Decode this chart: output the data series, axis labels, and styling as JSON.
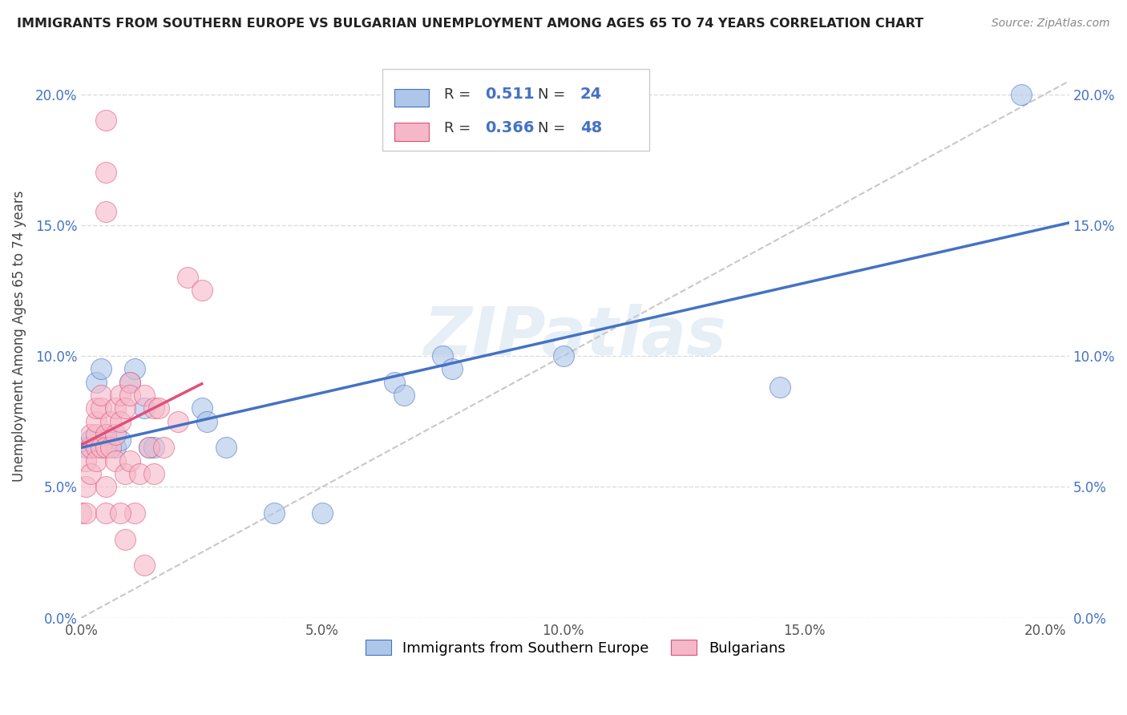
{
  "title": "IMMIGRANTS FROM SOUTHERN EUROPE VS BULGARIAN UNEMPLOYMENT AMONG AGES 65 TO 74 YEARS CORRELATION CHART",
  "source": "Source: ZipAtlas.com",
  "ylabel": "Unemployment Among Ages 65 to 74 years",
  "legend_label1": "Immigrants from Southern Europe",
  "legend_label2": "Bulgarians",
  "R1": "0.511",
  "N1": "24",
  "R2": "0.366",
  "N2": "48",
  "color_blue": "#aec6e8",
  "color_pink": "#f5b8c8",
  "line_blue": "#4472c4",
  "line_pink": "#e0507a",
  "line_dashed_color": "#c8c8c8",
  "watermark": "ZIPatlas",
  "blue_scatter_x": [
    0.001,
    0.002,
    0.003,
    0.004,
    0.005,
    0.007,
    0.008,
    0.01,
    0.011,
    0.013,
    0.014,
    0.015,
    0.025,
    0.026,
    0.03,
    0.04,
    0.05,
    0.065,
    0.067,
    0.075,
    0.077,
    0.1,
    0.145,
    0.195
  ],
  "blue_scatter_y": [
    0.065,
    0.068,
    0.09,
    0.095,
    0.07,
    0.065,
    0.068,
    0.09,
    0.095,
    0.08,
    0.065,
    0.065,
    0.08,
    0.075,
    0.065,
    0.04,
    0.04,
    0.09,
    0.085,
    0.1,
    0.095,
    0.1,
    0.088,
    0.2
  ],
  "pink_scatter_x": [
    0.0,
    0.001,
    0.001,
    0.001,
    0.002,
    0.002,
    0.002,
    0.003,
    0.003,
    0.003,
    0.003,
    0.003,
    0.004,
    0.004,
    0.004,
    0.005,
    0.005,
    0.005,
    0.005,
    0.005,
    0.006,
    0.006,
    0.007,
    0.007,
    0.007,
    0.008,
    0.008,
    0.009,
    0.009,
    0.01,
    0.01,
    0.01,
    0.011,
    0.012,
    0.013,
    0.013,
    0.014,
    0.015,
    0.015,
    0.016,
    0.017,
    0.02,
    0.022,
    0.005,
    0.005,
    0.008,
    0.009,
    0.025
  ],
  "pink_scatter_y": [
    0.04,
    0.04,
    0.05,
    0.06,
    0.055,
    0.065,
    0.07,
    0.07,
    0.075,
    0.08,
    0.065,
    0.06,
    0.08,
    0.085,
    0.065,
    0.07,
    0.065,
    0.05,
    0.17,
    0.19,
    0.075,
    0.065,
    0.08,
    0.07,
    0.06,
    0.085,
    0.075,
    0.08,
    0.055,
    0.09,
    0.085,
    0.06,
    0.04,
    0.055,
    0.085,
    0.02,
    0.065,
    0.08,
    0.055,
    0.08,
    0.065,
    0.075,
    0.13,
    0.155,
    0.04,
    0.04,
    0.03,
    0.125
  ],
  "xlim": [
    0.0,
    0.205
  ],
  "ylim": [
    0.0,
    0.215
  ],
  "xtick_vals": [
    0.0,
    0.05,
    0.1,
    0.15,
    0.2
  ],
  "ytick_vals": [
    0.0,
    0.05,
    0.1,
    0.15,
    0.2
  ],
  "background_color": "#ffffff"
}
